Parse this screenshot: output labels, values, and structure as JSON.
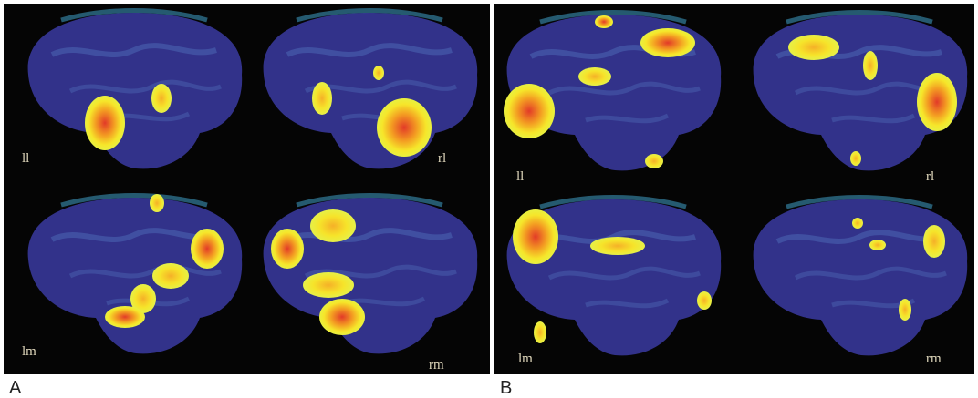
{
  "panels": [
    {
      "label": "A",
      "views": [
        "ll",
        "rl",
        "lm",
        "rm"
      ]
    },
    {
      "label": "B",
      "views": [
        "ll",
        "rl",
        "lm",
        "rm"
      ]
    }
  ]
}
